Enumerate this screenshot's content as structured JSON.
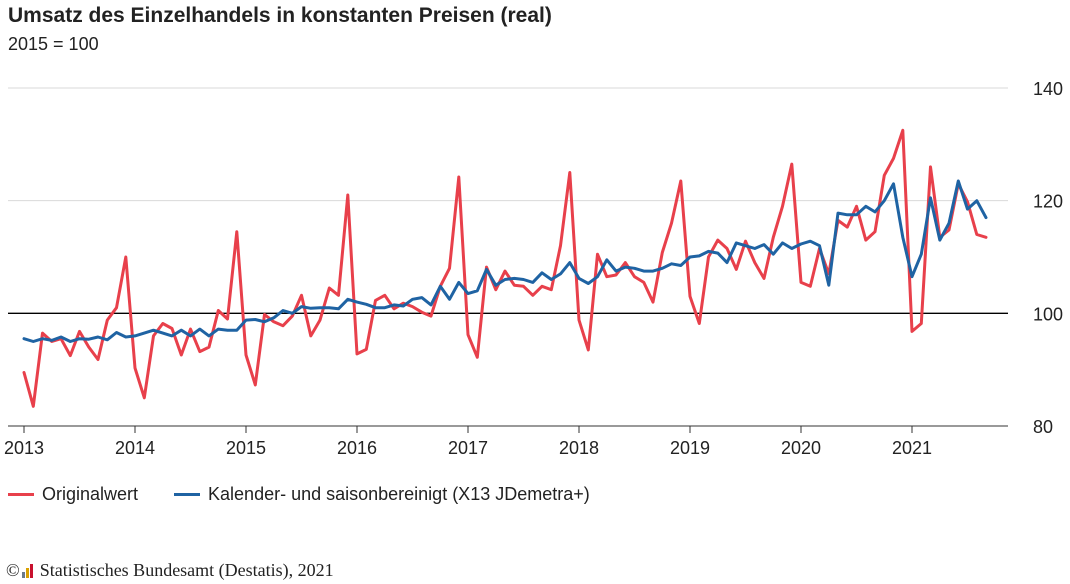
{
  "header": {
    "title": "Umsatz des Einzelhandels in konstanten Preisen (real)",
    "subtitle": "2015 = 100"
  },
  "legend": {
    "original_label": "Originalwert",
    "adjusted_label": "Kalender- und saisonbereinigt (X13 JDemetra+)"
  },
  "source": {
    "copyright": "©",
    "text": "Statistisches Bundesamt (Destatis), 2021"
  },
  "colors": {
    "original": "#e8404b",
    "adjusted": "#1f63a3",
    "grid": "#d9d9d9",
    "baseline": "#000000",
    "axis": "#333333"
  },
  "chart_data": {
    "type": "line",
    "title": "Umsatz des Einzelhandels in konstanten Preisen (real)",
    "subtitle": "2015 = 100",
    "x_start": "2013-01",
    "x_frequency": "monthly",
    "x_ticks": [
      "2013",
      "2014",
      "2015",
      "2016",
      "2017",
      "2018",
      "2019",
      "2020",
      "2021"
    ],
    "y_ticks": [
      80,
      100,
      120,
      140
    ],
    "ylim": [
      80,
      140
    ],
    "reference_line": 100,
    "grid": true,
    "legend_position": "bottom",
    "series": [
      {
        "name": "Originalwert",
        "values": [
          89.5,
          83.5,
          96.5,
          95.0,
          95.5,
          92.5,
          96.8,
          94.0,
          91.8,
          98.8,
          101.0,
          110.0,
          90.3,
          85.0,
          96.0,
          98.2,
          97.3,
          92.6,
          97.2,
          93.2,
          94.0,
          100.5,
          99.0,
          114.5,
          92.6,
          87.3,
          99.8,
          98.5,
          97.8,
          99.5,
          103.2,
          96.0,
          98.8,
          104.5,
          103.2,
          121.0,
          92.8,
          93.6,
          102.3,
          103.2,
          100.8,
          101.8,
          101.2,
          100.2,
          99.5,
          104.8,
          108.0,
          124.2,
          96.2,
          92.2,
          108.2,
          104.2,
          107.5,
          105.0,
          104.8,
          103.2,
          104.8,
          104.2,
          112.0,
          125.0,
          98.8,
          93.5,
          110.5,
          106.5,
          106.8,
          109.0,
          106.5,
          105.5,
          102.0,
          110.8,
          116.0,
          123.5,
          103.0,
          98.2,
          110.0,
          113.0,
          111.5,
          107.8,
          112.8,
          109.0,
          106.2,
          113.5,
          119.0,
          126.5,
          105.5,
          104.8,
          111.5,
          107.0,
          116.5,
          115.3,
          119.0,
          113.0,
          114.5,
          124.5,
          127.5,
          132.5,
          96.8,
          98.2,
          126.0,
          113.5,
          114.8,
          123.0,
          119.8,
          114.0,
          113.5
        ]
      },
      {
        "name": "Kalender- und saisonbereinigt (X13 JDemetra+)",
        "values": [
          95.5,
          95.0,
          95.5,
          95.2,
          95.8,
          95.0,
          95.5,
          95.4,
          95.8,
          95.3,
          96.6,
          95.8,
          96.0,
          96.5,
          97.0,
          96.5,
          96.0,
          97.0,
          96.0,
          97.2,
          96.0,
          97.2,
          97.0,
          97.0,
          98.8,
          98.9,
          98.5,
          99.2,
          100.5,
          100.0,
          101.2,
          100.9,
          101.0,
          101.0,
          100.8,
          102.5,
          102.0,
          101.6,
          101.0,
          101.0,
          101.5,
          101.3,
          102.5,
          102.8,
          101.5,
          104.8,
          102.5,
          105.5,
          103.5,
          104.0,
          107.8,
          105.0,
          106.0,
          106.2,
          106.0,
          105.5,
          107.2,
          106.0,
          107.0,
          109.0,
          106.2,
          105.3,
          106.5,
          109.5,
          107.5,
          108.2,
          108.0,
          107.5,
          107.5,
          108.0,
          108.8,
          108.5,
          110.0,
          110.2,
          111.0,
          110.7,
          109.0,
          112.5,
          112.0,
          111.5,
          112.2,
          110.5,
          112.5,
          111.5,
          112.3,
          112.8,
          112.0,
          105.0,
          117.8,
          117.5,
          117.5,
          119.0,
          118.0,
          120.0,
          123.0,
          113.5,
          106.5,
          110.5,
          120.5,
          113.0,
          116.0,
          123.5,
          118.5,
          120.0,
          117.0
        ]
      }
    ]
  }
}
